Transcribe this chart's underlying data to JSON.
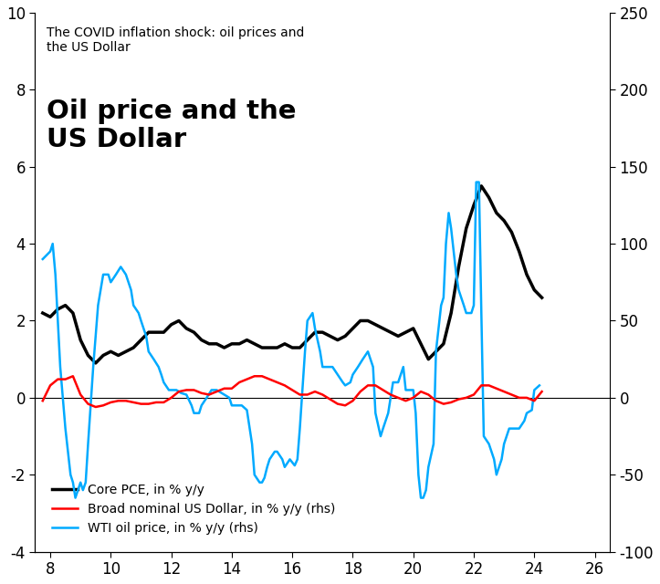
{
  "subtitle": "The COVID inflation shock: oil prices and\nthe US Dollar",
  "main_title": "Oil price and the\nUS Dollar",
  "legend": [
    {
      "label": "Core PCE, in % y/y",
      "color": "#000000"
    },
    {
      "label": "Broad nominal US Dollar, in % y/y (rhs)",
      "color": "#FF0000"
    },
    {
      "label": "WTI oil price, in % y/y (rhs)",
      "color": "#00AAFF"
    }
  ],
  "xlim": [
    7.5,
    26.5
  ],
  "ylim_left": [
    -4,
    10
  ],
  "ylim_right": [
    -100,
    250
  ],
  "xticks": [
    8,
    10,
    12,
    14,
    16,
    18,
    20,
    22,
    24,
    26
  ],
  "yticks_left": [
    -4,
    -2,
    0,
    2,
    4,
    6,
    8,
    10
  ],
  "yticks_right": [
    -100,
    -50,
    0,
    50,
    100,
    150,
    200,
    250
  ],
  "background_color": "#FFFFFF",
  "core_pce": {
    "x": [
      7.75,
      8.0,
      8.25,
      8.5,
      8.75,
      9.0,
      9.25,
      9.5,
      9.75,
      10.0,
      10.25,
      10.5,
      10.75,
      11.0,
      11.25,
      11.5,
      11.75,
      12.0,
      12.25,
      12.5,
      12.75,
      13.0,
      13.25,
      13.5,
      13.75,
      14.0,
      14.25,
      14.5,
      14.75,
      15.0,
      15.25,
      15.5,
      15.75,
      16.0,
      16.25,
      16.5,
      16.75,
      17.0,
      17.25,
      17.5,
      17.75,
      18.0,
      18.25,
      18.5,
      18.75,
      19.0,
      19.25,
      19.5,
      19.75,
      20.0,
      20.25,
      20.5,
      20.75,
      21.0,
      21.25,
      21.5,
      21.75,
      22.0,
      22.25,
      22.5,
      22.75,
      23.0,
      23.25,
      23.5,
      23.75,
      24.0,
      24.25
    ],
    "y": [
      2.2,
      2.1,
      2.3,
      2.4,
      2.2,
      1.5,
      1.1,
      0.9,
      1.1,
      1.2,
      1.1,
      1.2,
      1.3,
      1.5,
      1.7,
      1.7,
      1.7,
      1.9,
      2.0,
      1.8,
      1.7,
      1.5,
      1.4,
      1.4,
      1.3,
      1.4,
      1.4,
      1.5,
      1.4,
      1.3,
      1.3,
      1.3,
      1.4,
      1.3,
      1.3,
      1.5,
      1.7,
      1.7,
      1.6,
      1.5,
      1.6,
      1.8,
      2.0,
      2.0,
      1.9,
      1.8,
      1.7,
      1.6,
      1.7,
      1.8,
      1.4,
      1.0,
      1.2,
      1.4,
      2.2,
      3.4,
      4.4,
      5.0,
      5.5,
      5.2,
      4.8,
      4.6,
      4.3,
      3.8,
      3.2,
      2.8,
      2.6
    ]
  },
  "usd": {
    "x": [
      7.75,
      8.0,
      8.25,
      8.5,
      8.75,
      9.0,
      9.25,
      9.5,
      9.75,
      10.0,
      10.25,
      10.5,
      10.75,
      11.0,
      11.25,
      11.5,
      11.75,
      12.0,
      12.25,
      12.5,
      12.75,
      13.0,
      13.25,
      13.5,
      13.75,
      14.0,
      14.25,
      14.5,
      14.75,
      15.0,
      15.25,
      15.5,
      15.75,
      16.0,
      16.25,
      16.5,
      16.75,
      17.0,
      17.25,
      17.5,
      17.75,
      18.0,
      18.25,
      18.5,
      18.75,
      19.0,
      19.25,
      19.5,
      19.75,
      20.0,
      20.25,
      20.5,
      20.75,
      21.0,
      21.25,
      21.5,
      21.75,
      22.0,
      22.25,
      22.5,
      22.75,
      23.0,
      23.25,
      23.5,
      23.75,
      24.0,
      24.25
    ],
    "y": [
      -2,
      8,
      12,
      12,
      14,
      2,
      -4,
      -6,
      -5,
      -3,
      -2,
      -2,
      -3,
      -4,
      -4,
      -3,
      -3,
      0,
      4,
      5,
      5,
      3,
      2,
      4,
      6,
      6,
      10,
      12,
      14,
      14,
      12,
      10,
      8,
      5,
      2,
      2,
      4,
      2,
      -1,
      -4,
      -5,
      -2,
      4,
      8,
      8,
      5,
      2,
      0,
      -2,
      0,
      4,
      2,
      -2,
      -4,
      -3,
      -1,
      0,
      2,
      8,
      8,
      6,
      4,
      2,
      0,
      0,
      -2,
      4
    ]
  },
  "wti": {
    "x": [
      7.75,
      8.0,
      8.08,
      8.17,
      8.25,
      8.33,
      8.5,
      8.67,
      8.75,
      8.83,
      9.0,
      9.08,
      9.17,
      9.25,
      9.42,
      9.58,
      9.75,
      9.92,
      10.0,
      10.17,
      10.33,
      10.5,
      10.67,
      10.75,
      10.92,
      11.0,
      11.17,
      11.25,
      11.42,
      11.58,
      11.67,
      11.75,
      11.92,
      12.0,
      12.17,
      12.33,
      12.5,
      12.67,
      12.75,
      12.92,
      13.0,
      13.17,
      13.33,
      13.5,
      13.67,
      13.75,
      13.92,
      14.0,
      14.17,
      14.33,
      14.5,
      14.67,
      14.75,
      14.92,
      15.0,
      15.08,
      15.17,
      15.25,
      15.42,
      15.5,
      15.67,
      15.75,
      15.92,
      16.0,
      16.08,
      16.17,
      16.25,
      16.42,
      16.5,
      16.67,
      16.75,
      16.92,
      17.0,
      17.17,
      17.33,
      17.5,
      17.67,
      17.75,
      17.92,
      18.0,
      18.17,
      18.33,
      18.5,
      18.67,
      18.75,
      18.92,
      19.0,
      19.17,
      19.33,
      19.5,
      19.67,
      19.75,
      19.92,
      20.0,
      20.08,
      20.17,
      20.25,
      20.33,
      20.42,
      20.5,
      20.67,
      20.75,
      20.92,
      21.0,
      21.08,
      21.17,
      21.25,
      21.42,
      21.5,
      21.67,
      21.75,
      21.92,
      22.0,
      22.08,
      22.17,
      22.25,
      22.33,
      22.5,
      22.67,
      22.75,
      22.92,
      23.0,
      23.17,
      23.33,
      23.5,
      23.67,
      23.75,
      23.92,
      24.0,
      24.17
    ],
    "y": [
      90,
      95,
      100,
      80,
      50,
      20,
      -20,
      -50,
      -55,
      -65,
      -55,
      -60,
      -55,
      -30,
      20,
      60,
      80,
      80,
      75,
      80,
      85,
      80,
      70,
      60,
      55,
      50,
      40,
      30,
      25,
      20,
      15,
      10,
      5,
      5,
      5,
      3,
      2,
      -5,
      -10,
      -10,
      -5,
      0,
      5,
      5,
      3,
      2,
      0,
      -5,
      -5,
      -5,
      -8,
      -30,
      -50,
      -55,
      -55,
      -52,
      -45,
      -40,
      -35,
      -35,
      -40,
      -45,
      -40,
      -42,
      -44,
      -40,
      -20,
      30,
      50,
      55,
      45,
      30,
      20,
      20,
      20,
      15,
      10,
      8,
      10,
      15,
      20,
      25,
      30,
      20,
      -10,
      -25,
      -20,
      -10,
      10,
      10,
      20,
      5,
      5,
      5,
      -10,
      -50,
      -65,
      -65,
      -60,
      -45,
      -30,
      30,
      60,
      65,
      100,
      120,
      110,
      80,
      70,
      60,
      55,
      55,
      60,
      140,
      140,
      55,
      -25,
      -30,
      -40,
      -50,
      -40,
      -30,
      -20,
      -20,
      -20,
      -15,
      -10,
      -8,
      5,
      8
    ]
  }
}
